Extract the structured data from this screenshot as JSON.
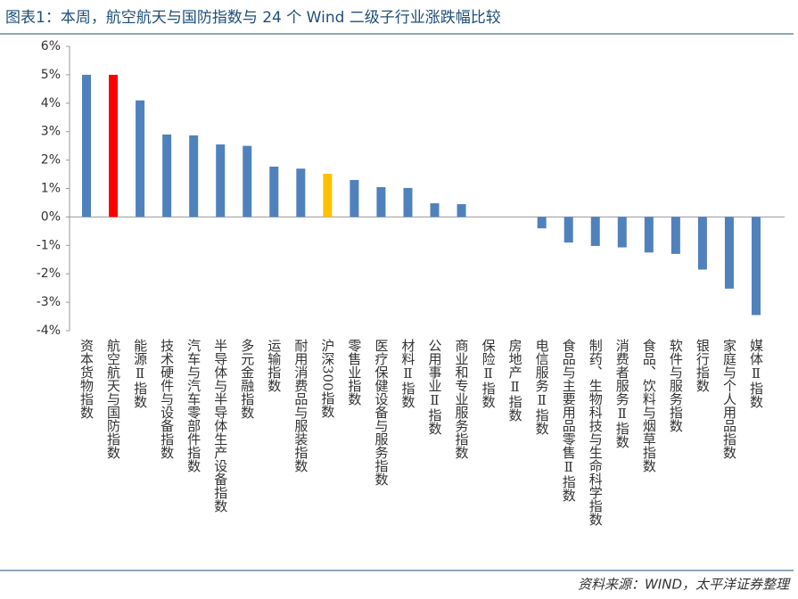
{
  "chart_data": {
    "type": "bar",
    "title": "图表1：本周，航空航天与国防指数与 24 个 Wind 二级子行业涨跌幅比较",
    "source": "资料来源：WIND，太平洋证券整理",
    "categories": [
      "资本货物指数",
      "航空航天与国防指数",
      "能源Ⅱ指数",
      "技术硬件与设备指数",
      "汽车与汽车零部件指数",
      "半导体与半导体生产设备指数",
      "多元金融指数",
      "运输指数",
      "耐用消费品与服装指数",
      "沪深300指数",
      "零售业指数",
      "医疗保健设备与服务指数",
      "材料Ⅱ指数",
      "公用事业Ⅱ指数",
      "商业和专业服务指数",
      "保险Ⅱ指数",
      "房地产Ⅱ指数",
      "电信服务Ⅱ指数",
      "食品与主要用品零售Ⅱ指数",
      "制药、生物科技与生命科学指数",
      "消费者服务Ⅱ指数",
      "食品、饮料与烟草指数",
      "软件与服务指数",
      "银行指数",
      "家庭与个人用品指数",
      "媒体Ⅱ指数"
    ],
    "values": [
      5.0,
      5.0,
      4.1,
      2.9,
      2.87,
      2.55,
      2.5,
      1.77,
      1.7,
      1.52,
      1.3,
      1.05,
      1.02,
      0.48,
      0.45,
      0,
      0,
      -0.4,
      -0.9,
      -1.02,
      -1.07,
      -1.25,
      -1.3,
      -1.85,
      -2.52,
      -3.45
    ],
    "colors": [
      "#4f81bd",
      "#ff0000",
      "#4f81bd",
      "#4f81bd",
      "#4f81bd",
      "#4f81bd",
      "#4f81bd",
      "#4f81bd",
      "#4f81bd",
      "#ffc000",
      "#4f81bd",
      "#4f81bd",
      "#4f81bd",
      "#4f81bd",
      "#4f81bd",
      "#4f81bd",
      "#4f81bd",
      "#4f81bd",
      "#4f81bd",
      "#4f81bd",
      "#4f81bd",
      "#4f81bd",
      "#4f81bd",
      "#4f81bd",
      "#4f81bd",
      "#4f81bd"
    ],
    "ylim": [
      -4,
      6
    ],
    "yticks": [
      {
        "value": -4,
        "label": "-4%"
      },
      {
        "value": -3,
        "label": "-3%"
      },
      {
        "value": -2,
        "label": "-2%"
      },
      {
        "value": -1,
        "label": "-1%"
      },
      {
        "value": 0,
        "label": "0%"
      },
      {
        "value": 1,
        "label": "1%"
      },
      {
        "value": 2,
        "label": "2%"
      },
      {
        "value": 3,
        "label": "3%"
      },
      {
        "value": 4,
        "label": "4%"
      },
      {
        "value": 5,
        "label": "5%"
      },
      {
        "value": 6,
        "label": "6%"
      }
    ],
    "grid": false
  }
}
